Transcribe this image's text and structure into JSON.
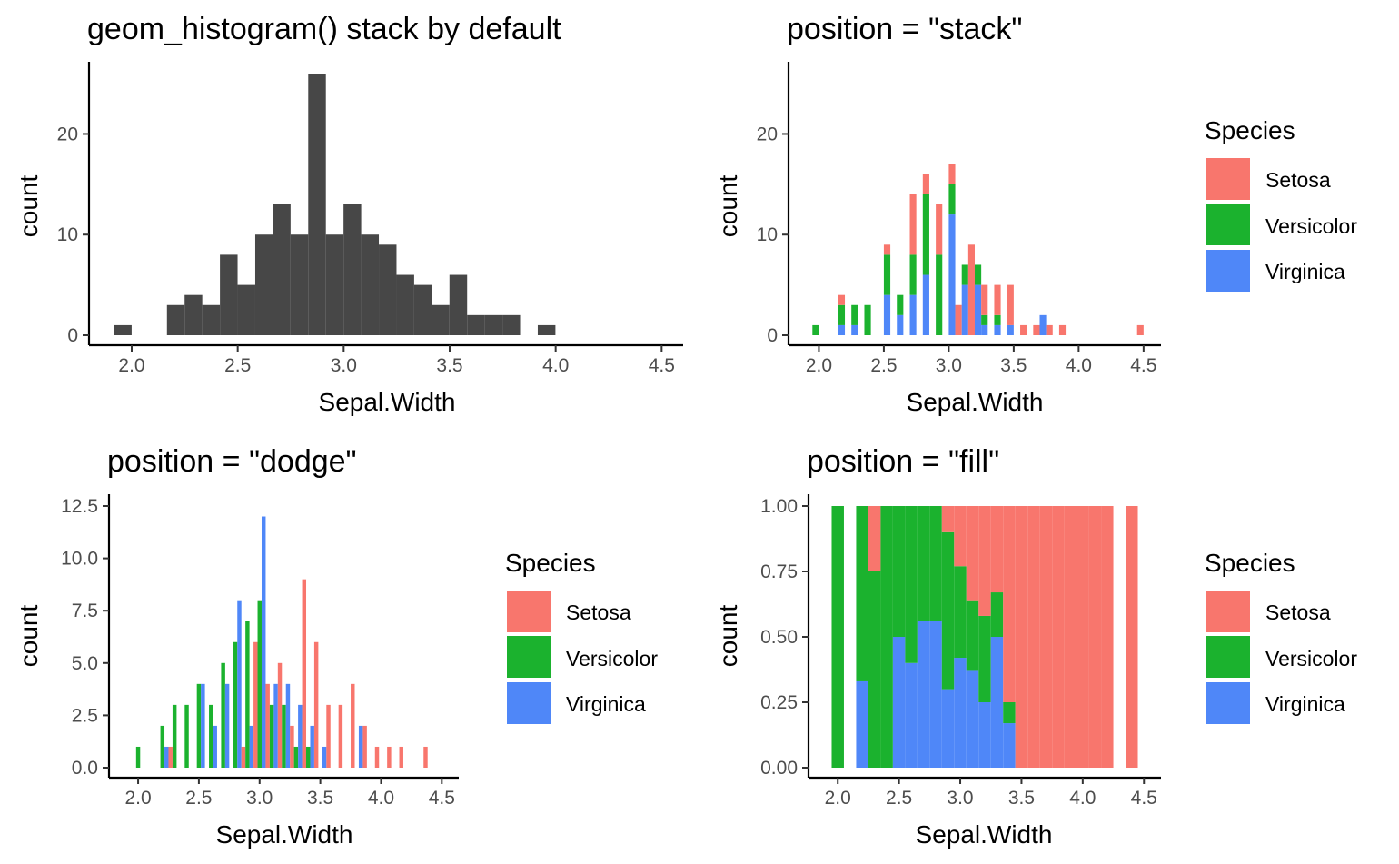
{
  "colors": {
    "setosa": "#F8766D",
    "versicolor": "#1BB22E",
    "virginica": "#4F87F8",
    "default_bar": "#474747"
  },
  "legend": {
    "title": "Species",
    "labels": [
      "Setosa",
      "Versicolor",
      "Virginica"
    ]
  },
  "chart_data": [
    {
      "type": "bar",
      "title": "geom_histogram() stack by default",
      "xlabel": "Sepal.Width",
      "ylabel": "count",
      "xlim": [
        1.85,
        4.55
      ],
      "ylim": [
        0,
        26
      ],
      "xticks": [
        "2.0",
        "2.5",
        "3.0",
        "3.5",
        "4.0",
        "4.5"
      ],
      "yticks": [
        "0",
        "10",
        "20"
      ],
      "bin_width": 0.0833,
      "bin_start": 1.958,
      "series": [
        {
          "name": "",
          "values": [
            1,
            0,
            0,
            3,
            4,
            3,
            8,
            5,
            10,
            13,
            10,
            26,
            10,
            13,
            10,
            9,
            6,
            5,
            3,
            6,
            2,
            2,
            2,
            0,
            1
          ]
        }
      ]
    },
    {
      "type": "bar",
      "stack": "stack",
      "title": "position = \"stack\"",
      "xlabel": "Sepal.Width",
      "ylabel": "count",
      "xlim": [
        1.85,
        4.55
      ],
      "ylim": [
        0,
        26
      ],
      "xticks": [
        "2.0",
        "2.5",
        "3.0",
        "3.5",
        "4.0",
        "4.5"
      ],
      "yticks": [
        "0",
        "10",
        "20"
      ],
      "bin_width": 0.05,
      "bin_start": 1.975,
      "series": [
        {
          "name": "Setosa",
          "values": [
            0,
            0,
            0,
            0,
            1,
            0,
            0,
            0,
            0,
            0,
            0,
            1,
            0,
            0,
            0,
            6,
            0,
            2,
            0,
            5,
            0,
            2,
            3,
            0,
            9,
            0,
            3,
            0,
            3,
            0,
            4,
            0,
            1,
            0,
            1,
            0,
            1,
            0,
            1,
            0,
            0,
            0,
            0,
            0,
            0,
            0,
            0,
            0,
            0,
            0,
            1
          ]
        },
        {
          "name": "Versicolor",
          "values": [
            1,
            0,
            0,
            0,
            2,
            0,
            2,
            0,
            3,
            0,
            0,
            4,
            0,
            2,
            0,
            4,
            0,
            8,
            0,
            8,
            0,
            3,
            0,
            2,
            0,
            2,
            1,
            0,
            1,
            0,
            0,
            0,
            0,
            0,
            0,
            0,
            0,
            0,
            0,
            0,
            0,
            0,
            0,
            0,
            0,
            0,
            0,
            0,
            0,
            0,
            0
          ]
        },
        {
          "name": "Virginica",
          "values": [
            0,
            0,
            0,
            0,
            1,
            0,
            1,
            0,
            0,
            0,
            0,
            4,
            0,
            2,
            0,
            4,
            0,
            6,
            0,
            0,
            0,
            12,
            0,
            5,
            0,
            5,
            1,
            0,
            1,
            0,
            1,
            0,
            0,
            0,
            0,
            2,
            0,
            0,
            0,
            0,
            0,
            0,
            0,
            0,
            0,
            0,
            0,
            0,
            0,
            0,
            0
          ]
        }
      ]
    },
    {
      "type": "bar",
      "stack": "dodge",
      "title": "position = \"dodge\"",
      "xlabel": "Sepal.Width",
      "ylabel": "count",
      "xlim": [
        1.85,
        4.55
      ],
      "ylim": [
        0,
        12.5
      ],
      "xticks": [
        "2.0",
        "2.5",
        "3.0",
        "3.5",
        "4.0",
        "4.5"
      ],
      "yticks": [
        "0.0",
        "2.5",
        "5.0",
        "7.5",
        "10.0",
        "12.5"
      ],
      "bin_width": 0.1,
      "x": [
        2.0,
        2.2,
        2.3,
        2.4,
        2.5,
        2.6,
        2.7,
        2.8,
        2.9,
        3.0,
        3.1,
        3.2,
        3.3,
        3.4,
        3.5,
        3.6,
        3.7,
        3.8,
        3.9,
        4.0,
        4.1,
        4.2,
        4.4
      ],
      "series": [
        {
          "name": "Setosa",
          "values": [
            0,
            0,
            1,
            0,
            0,
            0,
            0,
            0,
            1,
            6,
            4,
            5,
            2,
            9,
            6,
            3,
            3,
            4,
            2,
            1,
            1,
            1,
            1
          ]
        },
        {
          "name": "Versicolor",
          "values": [
            1,
            2,
            3,
            3,
            4,
            3,
            5,
            6,
            7,
            8,
            3,
            3,
            1,
            1,
            0,
            0,
            0,
            0,
            0,
            0,
            0,
            0,
            0
          ]
        },
        {
          "name": "Virginica",
          "values": [
            0,
            1,
            0,
            0,
            4,
            2,
            4,
            8,
            2,
            12,
            4,
            4,
            3,
            2,
            1,
            0,
            0,
            2,
            0,
            0,
            0,
            0,
            0
          ]
        }
      ]
    },
    {
      "type": "bar",
      "stack": "fill",
      "title": "position = \"fill\"",
      "xlabel": "Sepal.Width",
      "ylabel": "count",
      "xlim": [
        1.85,
        4.55
      ],
      "ylim": [
        0,
        1
      ],
      "xticks": [
        "2.0",
        "2.5",
        "3.0",
        "3.5",
        "4.0",
        "4.5"
      ],
      "yticks": [
        "0.00",
        "0.25",
        "0.50",
        "0.75",
        "1.00"
      ],
      "bin_width": 0.1,
      "x": [
        2.0,
        2.1,
        2.2,
        2.3,
        2.4,
        2.5,
        2.6,
        2.7,
        2.8,
        2.9,
        3.0,
        3.1,
        3.2,
        3.3,
        3.4,
        3.5,
        3.6,
        3.7,
        3.8,
        3.9,
        4.0,
        4.1,
        4.2,
        4.3,
        4.4
      ],
      "series": [
        {
          "name": "Setosa",
          "values": [
            0,
            0,
            0,
            0.25,
            0,
            0,
            0,
            0,
            0,
            0.1,
            0.23,
            0.36,
            0.42,
            0.33,
            0.75,
            1,
            1,
            1,
            1,
            1,
            1,
            1,
            1,
            0,
            1
          ]
        },
        {
          "name": "Versicolor",
          "values": [
            1,
            0,
            0.67,
            0.75,
            1,
            0.5,
            0.6,
            0.44,
            0.44,
            0.6,
            0.35,
            0.27,
            0.33,
            0.17,
            0.08,
            0,
            0,
            0,
            0,
            0,
            0,
            0,
            0,
            0,
            0
          ]
        },
        {
          "name": "Virginica",
          "values": [
            0,
            0,
            0.33,
            0,
            0,
            0.5,
            0.4,
            0.56,
            0.56,
            0.3,
            0.42,
            0.37,
            0.25,
            0.5,
            0.17,
            0,
            0,
            0,
            0,
            0,
            0,
            0,
            0,
            0,
            0
          ]
        }
      ]
    }
  ]
}
